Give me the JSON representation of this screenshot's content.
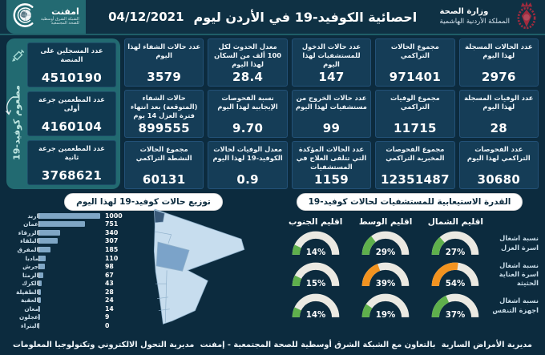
{
  "header": {
    "title": "احصائية الكوفيد-19 في الأردن ليوم",
    "date": "04/12/2021",
    "ministry": {
      "name": "وزارة الصحة",
      "country": "المملكة الأردنية الهاشمية"
    },
    "emphnet": {
      "name": "امفنت",
      "sub1": "الشبكة الشرق أوسطية",
      "sub2": "للصحة المجتمعية"
    }
  },
  "sidebar": {
    "label": "مطعوم كوفيد-19",
    "icon": "syringe-icon"
  },
  "stats": {
    "columns": [
      [
        {
          "label": "عدد الحالات المسجلة لهذا اليوم",
          "value": "2976"
        },
        {
          "label": "عدد الوفيات المسجلة لهذا اليوم",
          "value": "28"
        },
        {
          "label": "عدد الفحوصات التراكمي لهذا اليوم",
          "value": "30680"
        }
      ],
      [
        {
          "label": "مجموع الحالات التراكمي",
          "value": "971401"
        },
        {
          "label": "مجموع الوفيات التراكمي",
          "value": "11715"
        },
        {
          "label": "مجموع الفحوصات المخبرية التراكمي",
          "value": "12351487"
        }
      ],
      [
        {
          "label": "عدد حالات الدخول للمستشفيات لهذا اليوم",
          "value": "147"
        },
        {
          "label": "عدد حالات الخروج من مستشفيات لهذا اليوم",
          "value": "99"
        },
        {
          "label": "عدد الحالات المؤكدة التي تتلقى العلاج في المستشفيات",
          "value": "1159"
        }
      ],
      [
        {
          "label": "معدل الحدوث لكل 100 ألف من السكان لهذا اليوم",
          "value": "28.4"
        },
        {
          "label": "نسبة الفحوصات الإيجابية لهذا اليوم",
          "value": "9.70"
        },
        {
          "label": "معدل الوفيات لحالات الكوفيد-19 لهذا اليوم",
          "value": "0.9"
        }
      ],
      [
        {
          "label": "عدد حالات الشفاء لهذا اليوم",
          "value": "3579"
        },
        {
          "label": "حالات الشفاء (المتوقعة) بعد انتهاء فترة العزل 14 يوم",
          "value": "899555"
        },
        {
          "label": "مجموع الحالات النشطة التراكمي",
          "value": "60131"
        }
      ]
    ],
    "vaccine": [
      {
        "label": "عدد المسجلين على المنصة",
        "value": "4510190"
      },
      {
        "label": "عدد المطعمين جرعة أولى",
        "value": "4160104"
      },
      {
        "label": "عدد المطعمين جرعة ثانية",
        "value": "3768621"
      }
    ]
  },
  "chart_data": [
    {
      "type": "bar",
      "title": "توزيع حالات كوفيد-19 لهذا اليوم",
      "orientation": "horizontal",
      "categories": [
        "اربد",
        "عمان",
        "الزرقاء",
        "البلقاء",
        "المفرق",
        "مادبا",
        "جرش",
        "الرمثا",
        "الكرك",
        "الطفيلة",
        "العقبة",
        "معان",
        "عجلون",
        "البتراء"
      ],
      "values": [
        1000,
        751,
        340,
        307,
        185,
        110,
        98,
        67,
        43,
        28,
        24,
        14,
        9,
        0
      ],
      "xlim": [
        0,
        1000
      ],
      "bar_color": "#7fa6c5",
      "has_map": true,
      "map_colors": {
        "low": "#c7ddee",
        "mid": "#7ba3c9",
        "high": "#3a5a7a"
      }
    },
    {
      "type": "gauge-grid",
      "title": "القدرة الاستيعابية للمستشفيات لحالات كوفيد-19",
      "regions": [
        "اقليم الشمال",
        "اقليم الوسط",
        "اقليم الجنوب"
      ],
      "rows": [
        {
          "label": "نسبة اشغال اسرة العزل",
          "values": [
            27,
            29,
            14
          ],
          "colors": [
            "green",
            "green",
            "green"
          ]
        },
        {
          "label": "نسبة اشغال اسرة العناية الحثيثة",
          "values": [
            54,
            39,
            15
          ],
          "colors": [
            "orange",
            "orange",
            "green"
          ]
        },
        {
          "label": "نسبة اشغال اجهزة التنفس",
          "values": [
            37,
            19,
            14
          ],
          "colors": [
            "green",
            "green",
            "green"
          ]
        }
      ],
      "palette": {
        "green": "#5fb04c",
        "orange": "#f29320",
        "track": "#ebe9e2"
      }
    }
  ],
  "footer": {
    "right": "مديرية الأمراض السارية",
    "center": "بالتعاون مع الشبكة الشرق أوسطية للصحة المجتمعية - إمفنت",
    "left": "مديرية التحول الالكتروني وتكنولوجيا المعلومات"
  },
  "colors": {
    "background": "#0c2b3e",
    "card": "#153d57",
    "vaccine_panel": "#226a71",
    "accent_teal": "#1f5e68",
    "ministry_crimson": "#9e2b3e"
  }
}
